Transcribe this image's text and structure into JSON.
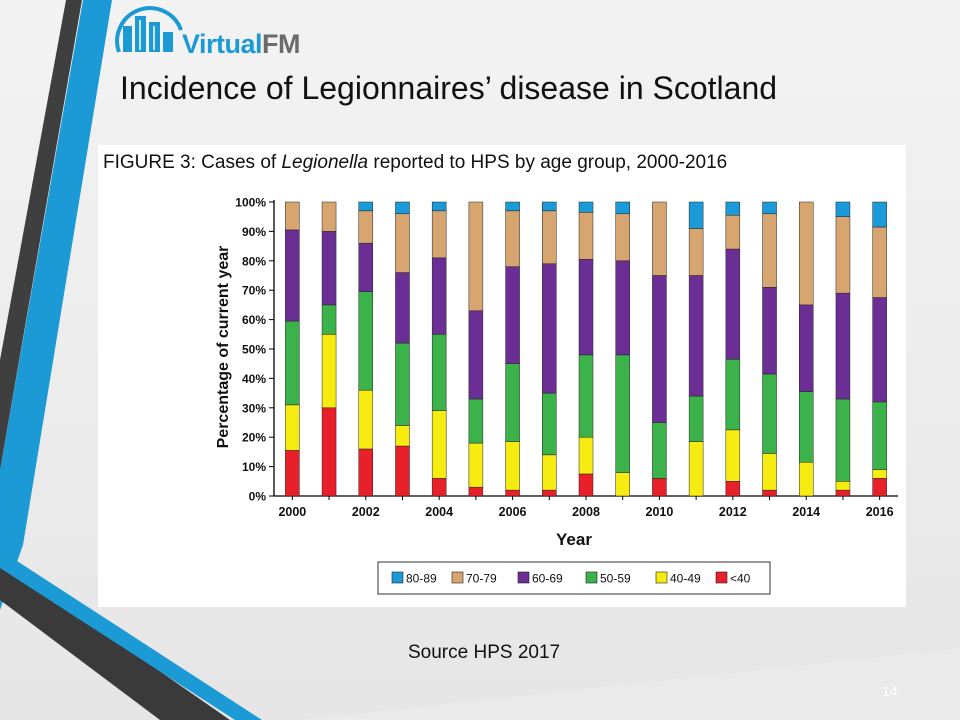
{
  "logo": {
    "word_a": "Virtual",
    "word_b": "FM"
  },
  "slide": {
    "title": "Incidence of Legionnaires’ disease in Scotland",
    "source": "Source HPS 2017",
    "page_number": "14"
  },
  "figure_caption": {
    "prefix": "FIGURE 3: Cases of ",
    "italic": "Legionella",
    "suffix": " reported to HPS by age group, 2000-2016"
  },
  "colors": {
    "80-89": "#1a9ad8",
    "70-79": "#d6a570",
    "60-69": "#6a2e95",
    "50-59": "#3cb24a",
    "40-49": "#f7ec12",
    "<40": "#e8202a",
    "accent_blue": "#1c9ad6",
    "accent_dark": "#3a3a3a"
  },
  "chart_data": {
    "type": "bar",
    "stacked": true,
    "xlabel": "Year",
    "ylabel": "Percentage of current year",
    "ylim": [
      0,
      100
    ],
    "y_ticks": [
      "0%",
      "10%",
      "20%",
      "30%",
      "40%",
      "50%",
      "60%",
      "70%",
      "80%",
      "90%",
      "100%"
    ],
    "x_tick_labels": [
      "2000",
      "2002",
      "2004",
      "2006",
      "2008",
      "2010",
      "2012",
      "2014",
      "2016"
    ],
    "categories": [
      "2000",
      "2001",
      "2002",
      "2003",
      "2004",
      "2005",
      "2006",
      "2007",
      "2008",
      "2009",
      "2010",
      "2011",
      "2012",
      "2013",
      "2014",
      "2015",
      "2016"
    ],
    "legend_position": "bottom",
    "series": [
      {
        "name": "<40",
        "values": [
          15.5,
          30,
          16,
          17,
          6,
          3,
          2,
          2,
          7.5,
          0,
          6,
          0,
          5,
          2,
          0,
          2,
          6
        ]
      },
      {
        "name": "40-49",
        "values": [
          15.5,
          25,
          20,
          7,
          23,
          15,
          16.5,
          12,
          12.5,
          8,
          0,
          18.5,
          17.5,
          12.5,
          11.5,
          3,
          3
        ]
      },
      {
        "name": "50-59",
        "values": [
          28.5,
          10,
          33.5,
          28,
          26,
          15,
          26.5,
          21,
          28,
          40,
          19,
          15.5,
          24,
          27,
          24,
          28,
          23
        ]
      },
      {
        "name": "60-69",
        "values": [
          31,
          25,
          16.5,
          24,
          26,
          30,
          33,
          44,
          32.5,
          32,
          50,
          41,
          37.5,
          29.5,
          29.5,
          36,
          35.5
        ]
      },
      {
        "name": "70-79",
        "values": [
          9.5,
          10,
          11,
          20,
          16,
          37,
          19,
          18,
          16,
          16,
          25,
          16,
          11.5,
          25,
          35,
          26,
          24
        ]
      },
      {
        "name": "80-89",
        "values": [
          0,
          0,
          3,
          4,
          3,
          0,
          3,
          3,
          3.5,
          4,
          0,
          9,
          4.5,
          4,
          0,
          5,
          8.5
        ]
      }
    ]
  }
}
